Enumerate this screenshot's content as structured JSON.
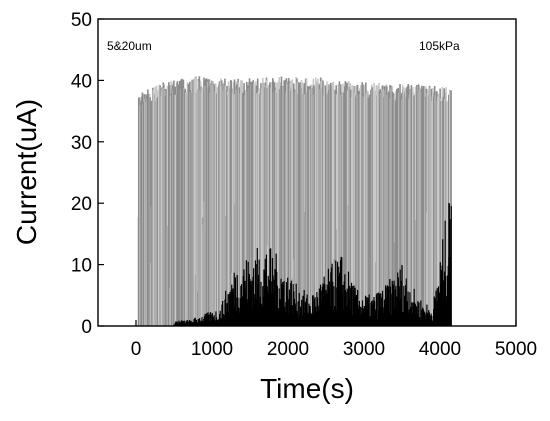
{
  "chart_data": {
    "type": "bar",
    "xlabel": "Time(s)",
    "ylabel": "Current(uA)",
    "xlim": [
      -500,
      5000
    ],
    "ylim": [
      0,
      50
    ],
    "x_ticks": [
      0,
      1000,
      2000,
      3000,
      4000,
      5000
    ],
    "y_ticks": [
      0,
      10,
      20,
      30,
      40,
      50
    ],
    "annotations": [
      {
        "text": "5&20um",
        "position": "top-left"
      },
      {
        "text": "105kPa",
        "position": "top-right"
      }
    ],
    "series": [
      {
        "color": "#8c8c8c",
        "description_range": [
          30,
          4150
        ],
        "peaks": [
          [
            30,
            37.8
          ],
          [
            120,
            38.6
          ],
          [
            300,
            39.5
          ],
          [
            500,
            40.2
          ],
          [
            800,
            40.8
          ],
          [
            1000,
            40.6
          ],
          [
            1200,
            40.3
          ],
          [
            1400,
            40.5
          ],
          [
            1600,
            40.4
          ],
          [
            1800,
            40.7
          ],
          [
            2000,
            40.8
          ],
          [
            2200,
            40.4
          ],
          [
            2400,
            40.6
          ],
          [
            2600,
            40.0
          ],
          [
            2800,
            40.1
          ],
          [
            3000,
            39.8
          ],
          [
            3200,
            39.7
          ],
          [
            3400,
            39.4
          ],
          [
            3600,
            39.6
          ],
          [
            3800,
            39.3
          ],
          [
            4000,
            39.2
          ],
          [
            4150,
            38.8
          ]
        ]
      },
      {
        "color": "#000000",
        "peaks": [
          [
            700,
            1.0
          ],
          [
            900,
            2.0
          ],
          [
            1100,
            3.0
          ],
          [
            1300,
            10.0
          ],
          [
            1500,
            12.0
          ],
          [
            1700,
            14.0
          ],
          [
            1900,
            11.0
          ],
          [
            2100,
            7.0
          ],
          [
            2300,
            5.0
          ],
          [
            2500,
            9.0
          ],
          [
            2700,
            12.0
          ],
          [
            2900,
            6.0
          ],
          [
            3100,
            5.0
          ],
          [
            3300,
            7.0
          ],
          [
            3500,
            10.5
          ],
          [
            3700,
            5.0
          ],
          [
            3900,
            3.0
          ],
          [
            4100,
            20.0
          ]
        ]
      }
    ]
  }
}
